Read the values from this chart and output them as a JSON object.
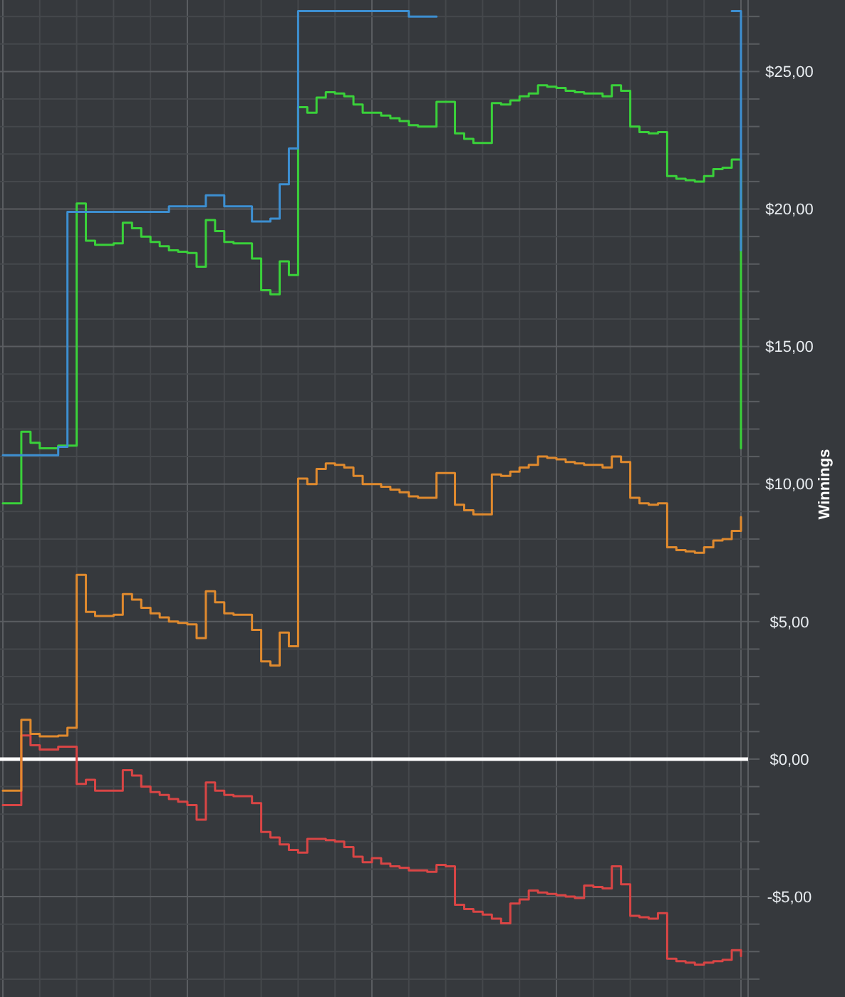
{
  "chart_data": {
    "type": "step",
    "ylabel": "Winnings",
    "grid": true,
    "categories": [
      null,
      null,
      null,
      null,
      null,
      null,
      null,
      null,
      null,
      null,
      null,
      null,
      null,
      null,
      null,
      null,
      null,
      null,
      null,
      null,
      null,
      null,
      null,
      null,
      null,
      null,
      null,
      null,
      null,
      null,
      null,
      null,
      null,
      null,
      null,
      null,
      null,
      null,
      null,
      null,
      null,
      null,
      null,
      null,
      null,
      null,
      null,
      null,
      null,
      null,
      null,
      null,
      null,
      null,
      null,
      null,
      null,
      null,
      null,
      null,
      null,
      null,
      null,
      null,
      null,
      null,
      null,
      null,
      null,
      null,
      null,
      null,
      null,
      null,
      null,
      null,
      null,
      null,
      null,
      null,
      null
    ],
    "ylim": [
      -8.65,
      27.6
    ],
    "yticks": [
      {
        "value": -8,
        "label": null
      },
      {
        "value": -7,
        "label": null
      },
      {
        "value": -6,
        "label": null
      },
      {
        "value": -5,
        "label": "-$5,00"
      },
      {
        "value": -4,
        "label": null
      },
      {
        "value": -3,
        "label": null
      },
      {
        "value": -2,
        "label": null
      },
      {
        "value": -1,
        "label": null
      },
      {
        "value": 0,
        "label": "$0,00"
      },
      {
        "value": 1,
        "label": null
      },
      {
        "value": 2,
        "label": null
      },
      {
        "value": 3,
        "label": null
      },
      {
        "value": 4,
        "label": null
      },
      {
        "value": 5,
        "label": "$5,00"
      },
      {
        "value": 6,
        "label": null
      },
      {
        "value": 7,
        "label": null
      },
      {
        "value": 8,
        "label": null
      },
      {
        "value": 9,
        "label": null
      },
      {
        "value": 10,
        "label": "$10,00"
      },
      {
        "value": 11,
        "label": null
      },
      {
        "value": 12,
        "label": null
      },
      {
        "value": 13,
        "label": null
      },
      {
        "value": 14,
        "label": null
      },
      {
        "value": 15,
        "label": "$15,00"
      },
      {
        "value": 16,
        "label": null
      },
      {
        "value": 17,
        "label": null
      },
      {
        "value": 18,
        "label": null
      },
      {
        "value": 19,
        "label": null
      },
      {
        "value": 20,
        "label": "$20,00"
      },
      {
        "value": 21,
        "label": null
      },
      {
        "value": 22,
        "label": null
      },
      {
        "value": 23,
        "label": null
      },
      {
        "value": 24,
        "label": null
      },
      {
        "value": 25,
        "label": "$25,00"
      },
      {
        "value": 26,
        "label": null
      },
      {
        "value": 27,
        "label": null
      }
    ],
    "ref_lines": [
      {
        "axis": "y",
        "value": 0,
        "color": "#ffffff"
      }
    ],
    "series": [
      {
        "color": "#3d8fd1",
        "values": [
          11.05,
          11.05,
          11.05,
          11.05,
          11.05,
          11.05,
          11.35,
          19.9,
          19.9,
          19.9,
          19.9,
          19.9,
          19.9,
          19.9,
          19.9,
          19.9,
          19.9,
          19.9,
          20.1,
          20.1,
          20.1,
          20.1,
          20.5,
          20.5,
          20.1,
          20.1,
          20.1,
          19.55,
          19.55,
          19.65,
          20.9,
          22.2,
          27.2,
          27.2,
          27.2,
          27.2,
          27.2,
          27.2,
          27.2,
          27.2,
          27.2,
          27.2,
          27.2,
          27.2,
          27.0,
          27.0,
          27.0,
          27.0,
          null,
          null,
          null,
          null,
          null,
          null,
          null,
          null,
          null,
          null,
          null,
          null,
          null,
          null,
          null,
          null,
          null,
          null,
          null,
          null,
          null,
          null,
          null,
          null,
          null,
          null,
          null,
          null,
          null,
          null,
          null,
          27.2,
          18.5
        ]
      },
      {
        "color": "#3ad13a",
        "values": [
          9.3,
          9.3,
          11.9,
          11.5,
          11.3,
          11.3,
          11.4,
          11.4,
          20.2,
          18.85,
          18.7,
          18.7,
          18.75,
          19.5,
          19.3,
          19.0,
          18.8,
          18.65,
          18.5,
          18.45,
          18.4,
          17.9,
          19.6,
          19.2,
          18.8,
          18.75,
          18.75,
          18.2,
          17.05,
          16.9,
          18.1,
          17.6,
          23.7,
          23.5,
          24.05,
          24.25,
          24.2,
          24.1,
          23.8,
          23.5,
          23.5,
          23.4,
          23.3,
          23.2,
          23.05,
          23.0,
          23.0,
          23.9,
          23.9,
          22.75,
          22.55,
          22.4,
          22.4,
          23.85,
          23.8,
          23.95,
          24.1,
          24.2,
          24.5,
          24.45,
          24.4,
          24.3,
          24.25,
          24.2,
          24.2,
          24.1,
          24.5,
          24.3,
          23.0,
          22.8,
          22.75,
          22.8,
          21.2,
          21.1,
          21.05,
          21.0,
          21.2,
          21.45,
          21.5,
          21.8,
          11.3
        ]
      },
      {
        "color": "#e08a2e",
        "values": [
          -1.15,
          -1.15,
          1.43,
          0.92,
          0.83,
          0.83,
          0.85,
          1.14,
          6.7,
          5.35,
          5.2,
          5.2,
          5.25,
          6.0,
          5.8,
          5.5,
          5.3,
          5.15,
          5.0,
          4.95,
          4.9,
          4.4,
          6.1,
          5.7,
          5.3,
          5.25,
          5.25,
          4.7,
          3.55,
          3.4,
          4.6,
          4.1,
          10.2,
          10.0,
          10.55,
          10.75,
          10.7,
          10.6,
          10.3,
          10.0,
          10.0,
          9.9,
          9.8,
          9.7,
          9.55,
          9.5,
          9.5,
          10.4,
          10.4,
          9.25,
          9.05,
          8.9,
          8.9,
          10.35,
          10.3,
          10.45,
          10.6,
          10.7,
          11.0,
          10.95,
          10.9,
          10.8,
          10.75,
          10.7,
          10.7,
          10.6,
          11.0,
          10.8,
          9.5,
          9.3,
          9.25,
          9.3,
          7.7,
          7.6,
          7.55,
          7.5,
          7.7,
          7.95,
          8.0,
          8.3,
          8.8
        ]
      },
      {
        "color": "#d94545",
        "values": [
          -1.67,
          -1.67,
          0.86,
          0.5,
          0.35,
          0.35,
          0.45,
          0.45,
          -0.9,
          -0.75,
          -1.15,
          -1.15,
          -1.15,
          -0.4,
          -0.6,
          -1.0,
          -1.2,
          -1.3,
          -1.45,
          -1.55,
          -1.67,
          -2.2,
          -0.85,
          -1.15,
          -1.3,
          -1.35,
          -1.35,
          -1.6,
          -2.65,
          -2.85,
          -3.1,
          -3.3,
          -3.4,
          -2.9,
          -2.9,
          -2.95,
          -3.0,
          -3.2,
          -3.55,
          -3.75,
          -3.6,
          -3.8,
          -3.9,
          -3.95,
          -4.05,
          -4.05,
          -4.1,
          -3.85,
          -3.9,
          -5.3,
          -5.45,
          -5.55,
          -5.65,
          -5.8,
          -5.97,
          -5.25,
          -5.1,
          -4.78,
          -4.85,
          -4.9,
          -4.95,
          -5.0,
          -5.05,
          -4.6,
          -4.65,
          -4.7,
          -3.9,
          -4.55,
          -5.7,
          -5.75,
          -5.8,
          -5.6,
          -7.26,
          -7.35,
          -7.4,
          -7.47,
          -7.4,
          -7.35,
          -7.3,
          -6.95,
          -7.16
        ]
      }
    ]
  }
}
